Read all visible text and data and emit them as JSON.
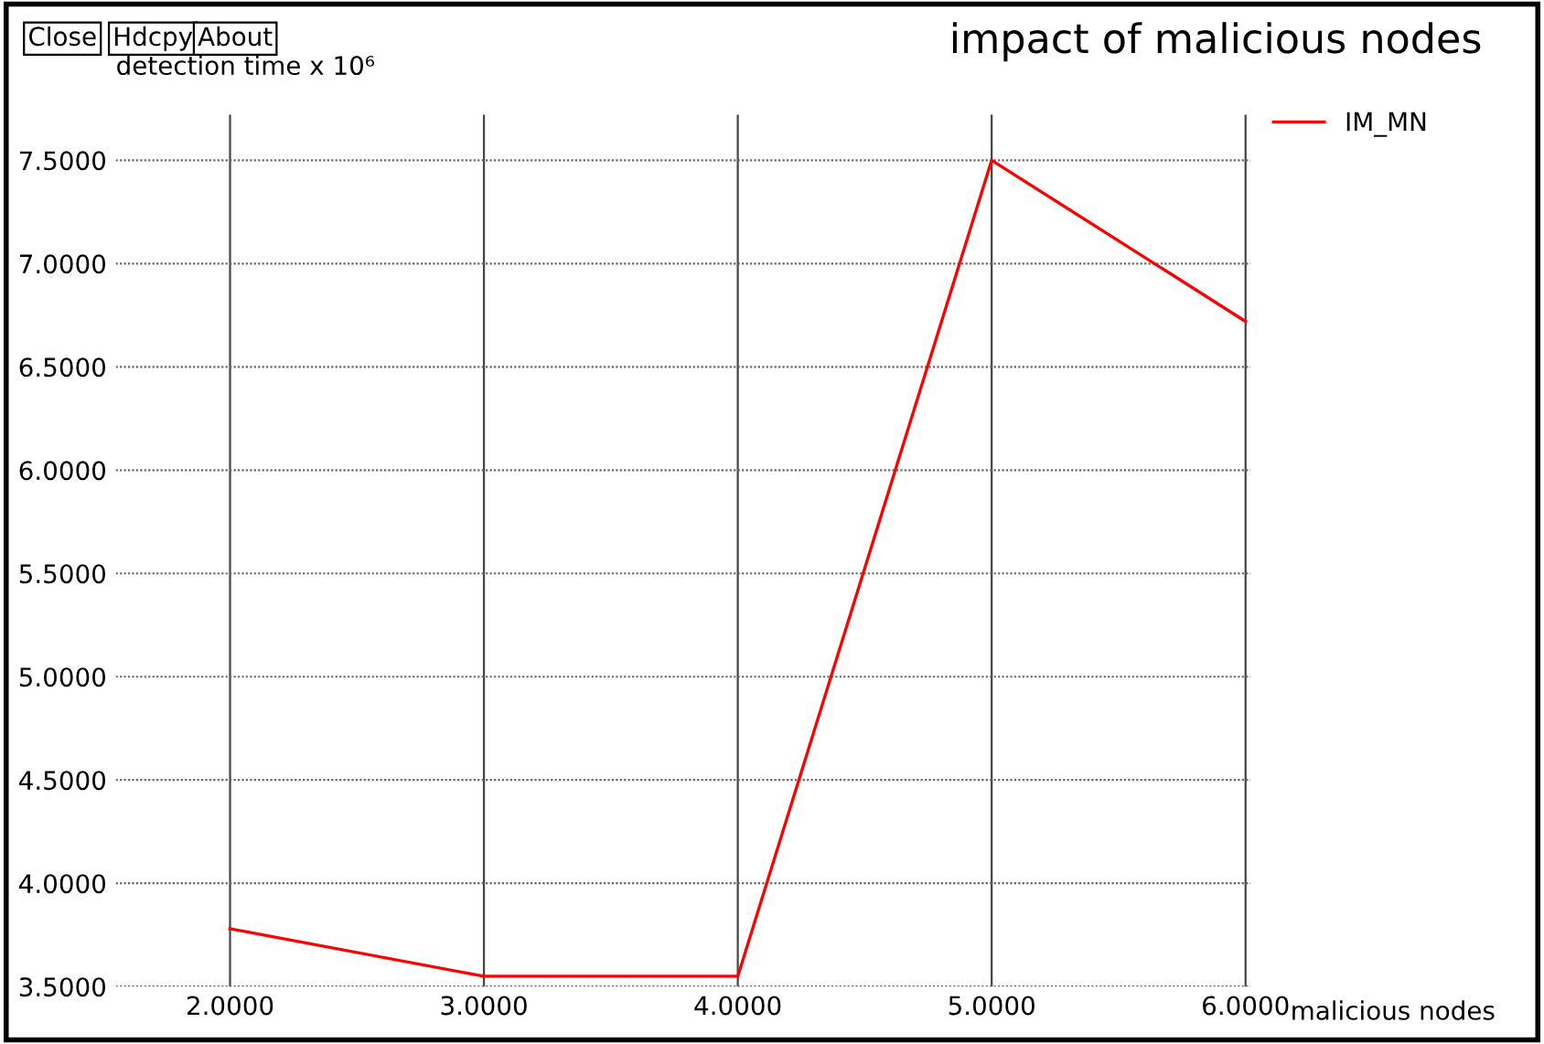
{
  "chart_data": {
    "type": "line",
    "title": "impact of malicious nodes",
    "xlabel": "malicious nodes",
    "ylabel": "detection time x 10⁶",
    "annotations": [
      "Close",
      "Hdcpy",
      "About"
    ],
    "x": [
      2,
      3,
      4,
      5,
      6
    ],
    "series": [
      {
        "name": "IM_MN",
        "color": "#ff0000",
        "values": [
          3.78,
          3.55,
          3.55,
          7.5,
          6.72
        ]
      }
    ],
    "xlim": [
      1.55,
      6.02
    ],
    "ylim": [
      3.5,
      7.72
    ],
    "xticks": [
      {
        "value": 2,
        "label": "2.0000"
      },
      {
        "value": 3,
        "label": "3.0000"
      },
      {
        "value": 4,
        "label": "4.0000"
      },
      {
        "value": 5,
        "label": "5.0000"
      },
      {
        "value": 6,
        "label": "6.0000"
      }
    ],
    "yticks": [
      {
        "value": 3.5,
        "label": "3.5000"
      },
      {
        "value": 4,
        "label": "4.0000"
      },
      {
        "value": 4.5,
        "label": "4.5000"
      },
      {
        "value": 5,
        "label": "5.0000"
      },
      {
        "value": 5.5,
        "label": "5.5000"
      },
      {
        "value": 6,
        "label": "6.0000"
      },
      {
        "value": 6.5,
        "label": "6.5000"
      },
      {
        "value": 7,
        "label": "7.0000"
      },
      {
        "value": 7.5,
        "label": "7.5000"
      }
    ],
    "grid": true,
    "legend": "top right",
    "marker": "none",
    "line_style": "solid"
  }
}
